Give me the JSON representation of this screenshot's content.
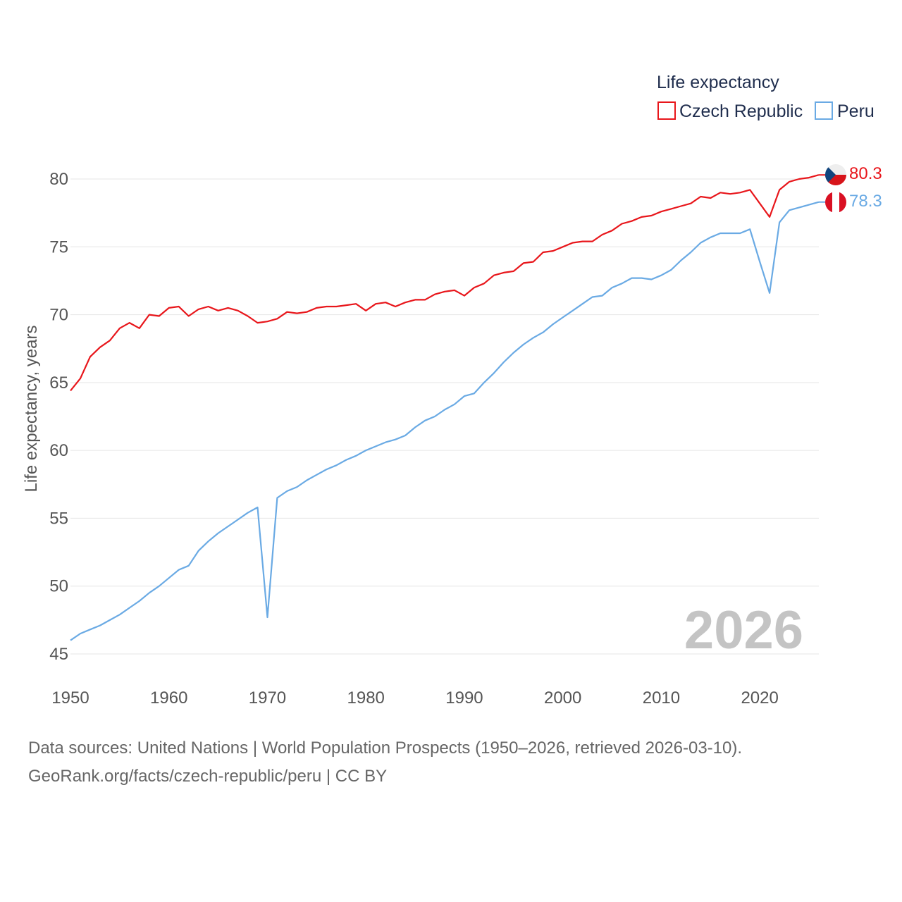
{
  "chart_data": {
    "type": "line",
    "title": "",
    "legend_title": "Life expectancy",
    "legend_position": "top-right",
    "ylabel": "Life expectancy, years",
    "xlabel": "",
    "xlim": [
      1950,
      2026
    ],
    "ylim": [
      44,
      83
    ],
    "x_ticks": [
      1950,
      1960,
      1970,
      1980,
      1990,
      2000,
      2010,
      2020
    ],
    "y_ticks": [
      45,
      50,
      55,
      60,
      65,
      70,
      75,
      80
    ],
    "grid": true,
    "current_year_label": "2026",
    "x": [
      1950,
      1951,
      1952,
      1953,
      1954,
      1955,
      1956,
      1957,
      1958,
      1959,
      1960,
      1961,
      1962,
      1963,
      1964,
      1965,
      1966,
      1967,
      1968,
      1969,
      1970,
      1971,
      1972,
      1973,
      1974,
      1975,
      1976,
      1977,
      1978,
      1979,
      1980,
      1981,
      1982,
      1983,
      1984,
      1985,
      1986,
      1987,
      1988,
      1989,
      1990,
      1991,
      1992,
      1993,
      1994,
      1995,
      1996,
      1997,
      1998,
      1999,
      2000,
      2001,
      2002,
      2003,
      2004,
      2005,
      2006,
      2007,
      2008,
      2009,
      2010,
      2011,
      2012,
      2013,
      2014,
      2015,
      2016,
      2017,
      2018,
      2019,
      2020,
      2021,
      2022,
      2023,
      2024,
      2025,
      2026
    ],
    "series": [
      {
        "name": "Czech Republic",
        "color": "#e8161b",
        "end_label": "80.3",
        "flag": "czech-flag-icon",
        "values": [
          64.4,
          65.3,
          66.9,
          67.6,
          68.1,
          69.0,
          69.4,
          69.0,
          70.0,
          69.9,
          70.5,
          70.6,
          69.9,
          70.4,
          70.6,
          70.3,
          70.5,
          70.3,
          69.9,
          69.4,
          69.5,
          69.7,
          70.2,
          70.1,
          70.2,
          70.5,
          70.6,
          70.6,
          70.7,
          70.8,
          70.3,
          70.8,
          70.9,
          70.6,
          70.9,
          71.1,
          71.1,
          71.5,
          71.7,
          71.8,
          71.4,
          72.0,
          72.3,
          72.9,
          73.1,
          73.2,
          73.8,
          73.9,
          74.6,
          74.7,
          75.0,
          75.3,
          75.4,
          75.4,
          75.9,
          76.2,
          76.7,
          76.9,
          77.2,
          77.3,
          77.6,
          77.8,
          78.0,
          78.2,
          78.7,
          78.6,
          79.0,
          78.9,
          79.0,
          79.2,
          78.2,
          77.2,
          79.2,
          79.8,
          80.0,
          80.1,
          80.3
        ]
      },
      {
        "name": "Peru",
        "color": "#6aaae4",
        "end_label": "78.3",
        "flag": "peru-flag-icon",
        "values": [
          46.0,
          46.5,
          46.8,
          47.1,
          47.5,
          47.9,
          48.4,
          48.9,
          49.5,
          50.0,
          50.6,
          51.2,
          51.5,
          52.6,
          53.3,
          53.9,
          54.4,
          54.9,
          55.4,
          55.8,
          47.7,
          56.5,
          57.0,
          57.3,
          57.8,
          58.2,
          58.6,
          58.9,
          59.3,
          59.6,
          60.0,
          60.3,
          60.6,
          60.8,
          61.1,
          61.7,
          62.2,
          62.5,
          63.0,
          63.4,
          64.0,
          64.2,
          65.0,
          65.7,
          66.5,
          67.2,
          67.8,
          68.3,
          68.7,
          69.3,
          69.8,
          70.3,
          70.8,
          71.3,
          71.4,
          72.0,
          72.3,
          72.7,
          72.7,
          72.6,
          72.9,
          73.3,
          74.0,
          74.6,
          75.3,
          75.7,
          76.0,
          76.0,
          76.0,
          76.3,
          73.9,
          71.6,
          76.8,
          77.7,
          77.9,
          78.1,
          78.3
        ]
      }
    ]
  },
  "source_lines": [
    "Data sources: United Nations | World Population Prospects (1950–2026, retrieved 2026-03-10).",
    "GeoRank.org/facts/czech-republic/peru | CC BY"
  ]
}
